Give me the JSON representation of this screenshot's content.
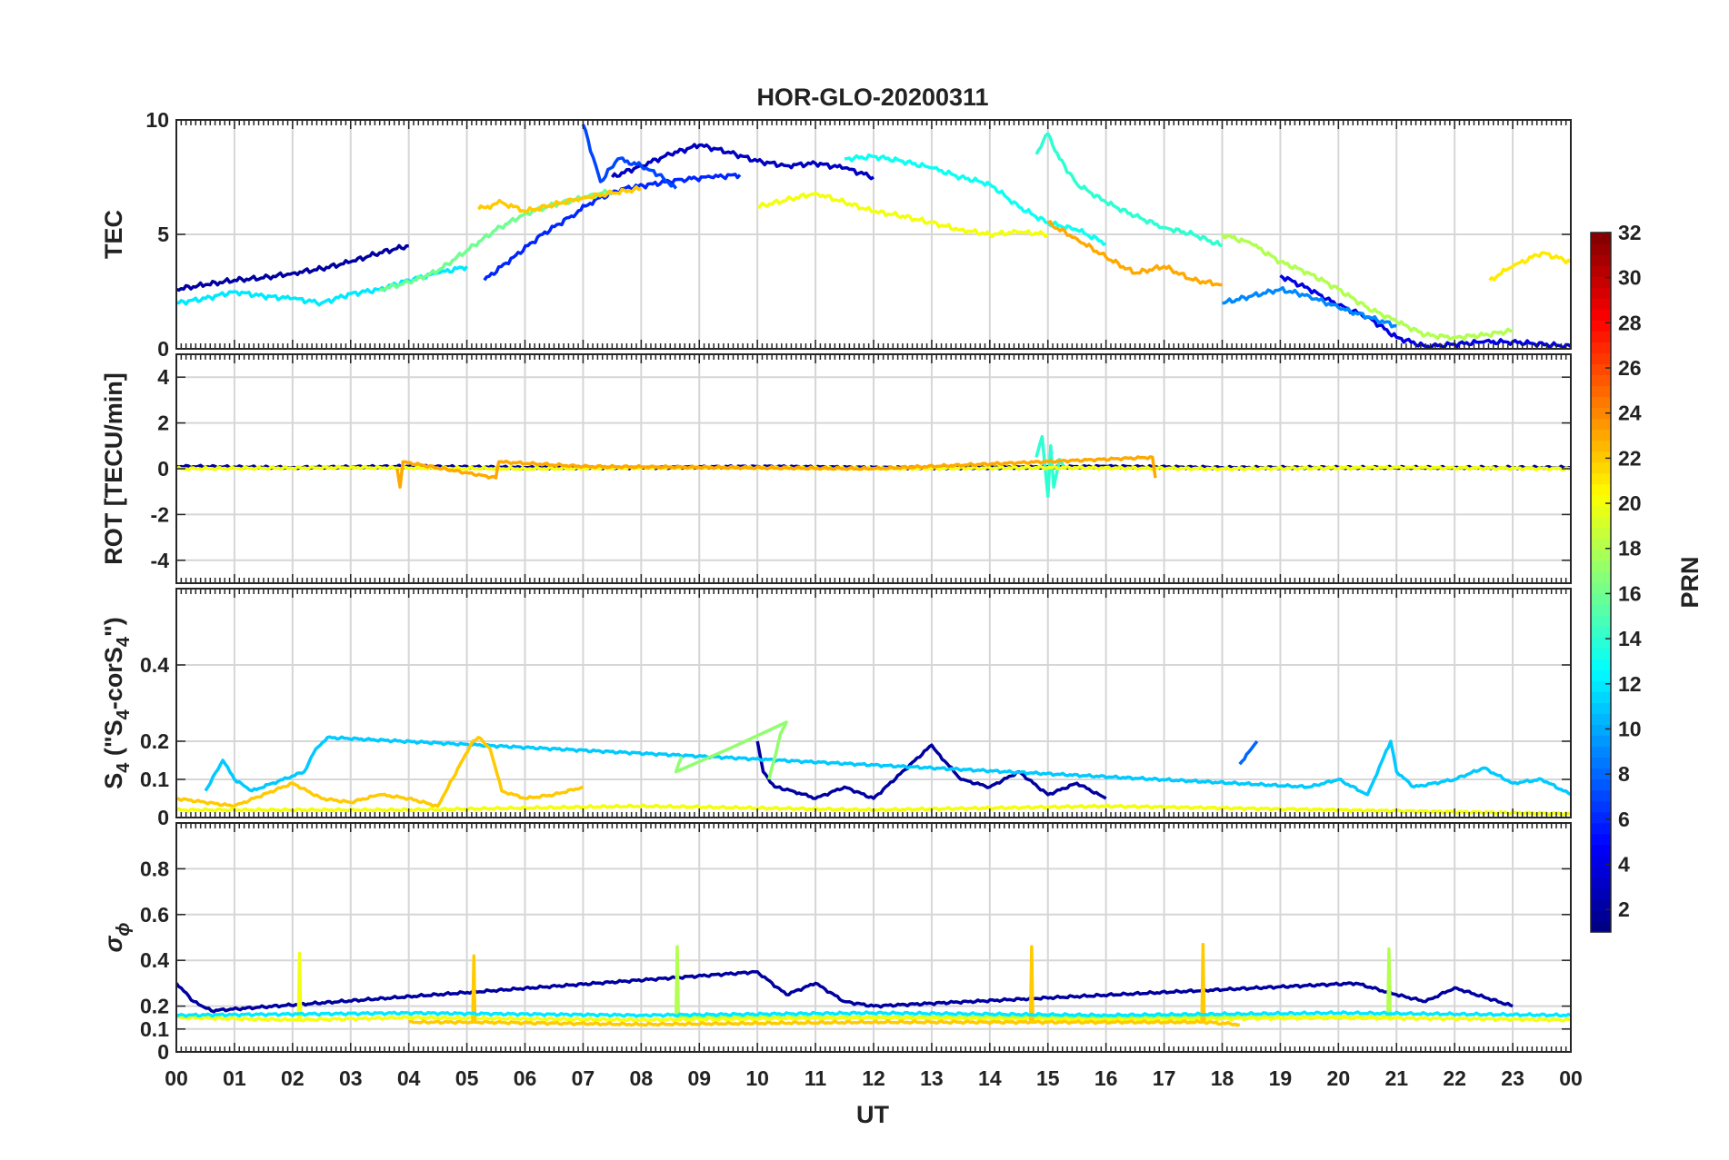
{
  "title": "HOR-GLO-20200311",
  "chart_data": [
    {
      "type": "line",
      "panel": "tec",
      "ylabel": "TEC",
      "ylim": [
        0,
        10
      ],
      "yticks": [
        0,
        5,
        10
      ],
      "ytick_labels": [
        "0",
        "5",
        "10"
      ],
      "xlim": [
        0,
        24
      ],
      "series": [
        {
          "name": "PRN 2",
          "prn": 2,
          "x": [
            0,
            0.5,
            1,
            1.5,
            2,
            2.5,
            3,
            3.5,
            4
          ],
          "y": [
            2.6,
            2.8,
            3.0,
            3.1,
            3.3,
            3.5,
            3.8,
            4.2,
            4.5
          ]
        },
        {
          "name": "PRN 3",
          "prn": 3,
          "x": [
            7.5,
            8,
            8.5,
            9,
            9.5,
            10,
            10.5,
            11,
            11.5,
            12
          ],
          "y": [
            7.5,
            8.0,
            8.5,
            8.9,
            8.6,
            8.2,
            8.0,
            8.1,
            7.9,
            7.5
          ]
        },
        {
          "name": "PRN 4",
          "prn": 4,
          "x": [
            19,
            19.5,
            20,
            20.5,
            21,
            21.5,
            22,
            22.5,
            23,
            24
          ],
          "y": [
            3.2,
            2.6,
            1.9,
            1.4,
            0.5,
            0.1,
            0.2,
            0.3,
            0.3,
            0.1
          ]
        },
        {
          "name": "PRN 6",
          "prn": 6,
          "x": [
            5.3,
            5.8,
            6.3,
            6.8,
            7.2,
            7.7,
            8.2,
            8.7,
            9.2,
            9.7
          ],
          "y": [
            3.0,
            4.0,
            5.0,
            5.8,
            6.5,
            7.0,
            7.2,
            7.4,
            7.5,
            7.6
          ]
        },
        {
          "name": "PRN 7",
          "prn": 7,
          "x": [
            7,
            7.3,
            7.6,
            8,
            8.3,
            8.6
          ],
          "y": [
            9.8,
            7.3,
            8.3,
            8.0,
            7.6,
            7.0
          ]
        },
        {
          "name": "PRN 9",
          "prn": 9,
          "x": [
            18,
            18.5,
            19,
            19.5,
            20,
            20.5,
            21
          ],
          "y": [
            2.0,
            2.3,
            2.6,
            2.3,
            1.8,
            1.4,
            1.0
          ]
        },
        {
          "name": "PRN 12",
          "prn": 12,
          "x": [
            0,
            0.5,
            1,
            1.5,
            2,
            2.5,
            3,
            3.5,
            4,
            4.5,
            5
          ],
          "y": [
            2.0,
            2.2,
            2.5,
            2.3,
            2.2,
            2.0,
            2.4,
            2.6,
            3.0,
            3.3,
            3.6
          ]
        },
        {
          "name": "PRN 13",
          "prn": 13,
          "x": [
            11.5,
            12,
            12.5,
            13,
            13.5,
            14,
            14.5,
            15,
            15.5,
            16
          ],
          "y": [
            8.3,
            8.4,
            8.2,
            7.9,
            7.5,
            7.2,
            6.2,
            5.5,
            5.2,
            4.6
          ]
        },
        {
          "name": "PRN 14",
          "prn": 14,
          "x": [
            14.8,
            15,
            15.2,
            15.5,
            16,
            16.5,
            17,
            17.5,
            18
          ],
          "y": [
            8.5,
            9.4,
            8.3,
            7.2,
            6.4,
            5.8,
            5.3,
            5.0,
            4.5
          ]
        },
        {
          "name": "PRN 16",
          "prn": 16,
          "x": [
            3.5,
            4,
            4.5,
            5,
            5.5,
            6,
            6.5,
            7,
            7.5
          ],
          "y": [
            2.6,
            2.9,
            3.4,
            4.3,
            5.2,
            5.9,
            6.3,
            6.6,
            6.9
          ]
        },
        {
          "name": "PRN 18",
          "prn": 18,
          "x": [
            18,
            18.5,
            19,
            19.5,
            20,
            20.5,
            21,
            21.5,
            22,
            22.5,
            23
          ],
          "y": [
            5.0,
            4.6,
            3.8,
            3.3,
            2.6,
            1.8,
            1.2,
            0.6,
            0.5,
            0.6,
            0.8
          ]
        },
        {
          "name": "PRN 20",
          "prn": 20,
          "x": [
            10,
            10.5,
            11,
            11.5,
            12,
            12.5,
            13,
            13.5,
            14,
            14.5,
            15
          ],
          "y": [
            6.2,
            6.5,
            6.8,
            6.4,
            6.0,
            5.8,
            5.5,
            5.2,
            5.0,
            5.1,
            5.0
          ]
        },
        {
          "name": "PRN 21",
          "prn": 21,
          "x": [
            22.6,
            23,
            23.5,
            24
          ],
          "y": [
            3.0,
            3.6,
            4.2,
            3.8
          ]
        },
        {
          "name": "PRN 22",
          "prn": 22,
          "x": [
            5.2,
            5.6,
            6,
            6.5,
            7,
            7.5,
            8
          ],
          "y": [
            6.1,
            6.4,
            6.0,
            6.3,
            6.6,
            6.8,
            7.0
          ]
        },
        {
          "name": "PRN 23",
          "prn": 23,
          "x": [
            15,
            15.5,
            16,
            16.5,
            17,
            17.5,
            18
          ],
          "y": [
            5.5,
            4.8,
            4.0,
            3.3,
            3.6,
            3.0,
            2.8
          ]
        }
      ]
    },
    {
      "type": "line",
      "panel": "rot",
      "ylabel": "ROT [TECU/min]",
      "ylim": [
        -5,
        5
      ],
      "yticks": [
        -4,
        -2,
        0,
        2,
        4
      ],
      "ytick_labels": [
        "-4",
        "-2",
        "0",
        "2",
        "4"
      ],
      "xlim": [
        0,
        24
      ],
      "series": [
        {
          "name": "PRN 2",
          "prn": 2,
          "x": [
            0,
            2,
            4,
            6,
            8,
            10,
            12,
            14,
            16,
            18,
            20,
            22,
            24
          ],
          "y": [
            0.1,
            0.05,
            0.1,
            0.05,
            0.05,
            0.1,
            0.05,
            0.05,
            0.1,
            0.05,
            0.05,
            0.05,
            0.05
          ]
        },
        {
          "name": "PRN 14",
          "prn": 14,
          "x": [
            14.8,
            14.9,
            15.0,
            15.05,
            15.1,
            15.2,
            15.3
          ],
          "y": [
            0.5,
            1.4,
            -1.2,
            1.0,
            -0.8,
            0.4,
            0.0
          ]
        },
        {
          "name": "PRN 20",
          "prn": 20,
          "x": [
            0,
            3,
            6,
            9,
            12,
            15,
            18,
            21,
            24
          ],
          "y": [
            0.0,
            0.05,
            0.0,
            0.05,
            0.0,
            0.05,
            0.0,
            0.05,
            0.0
          ]
        },
        {
          "name": "PRN 23",
          "prn": 23,
          "x": [
            3.8,
            3.85,
            3.9,
            5.5,
            5.55,
            7,
            12,
            16.8,
            16.85
          ],
          "y": [
            0.0,
            -0.8,
            0.3,
            -0.4,
            0.3,
            0.1,
            0.0,
            0.5,
            -0.4
          ]
        }
      ]
    },
    {
      "type": "line",
      "panel": "s4",
      "ylabel": "S4 (\"S4-corS4\")",
      "ylabel_parts": {
        "pre": "S",
        "sub1": "4",
        "mid": " (\"S",
        "sub2": "4",
        "mid2": "-corS",
        "sub3": "4",
        "post": "\")"
      },
      "ylim": [
        0,
        0.6
      ],
      "yticks": [
        0,
        0.1,
        0.2,
        0.4
      ],
      "ytick_labels": [
        "0",
        "0.1",
        "0.2",
        "0.4"
      ],
      "xlim": [
        0,
        24
      ],
      "series": [
        {
          "name": "PRN 2",
          "prn": 2,
          "x": [
            10,
            10.1,
            10.3,
            10.6,
            11,
            11.5,
            12,
            13,
            13.1,
            13.5,
            14,
            14.5,
            15,
            15.5,
            16
          ],
          "y": [
            0.2,
            0.12,
            0.08,
            0.07,
            0.05,
            0.08,
            0.05,
            0.19,
            0.17,
            0.1,
            0.08,
            0.12,
            0.06,
            0.09,
            0.05
          ]
        },
        {
          "name": "PRN 8",
          "prn": 8,
          "x": [
            18.3,
            18.5,
            18.6
          ],
          "y": [
            0.14,
            0.18,
            0.2
          ]
        },
        {
          "name": "PRN 11",
          "prn": 11,
          "x": [
            0.5,
            0.8,
            1,
            1.3,
            2.2,
            2.4,
            2.6,
            19.5,
            20,
            20.5,
            20.9,
            21,
            21.3,
            22,
            22.5,
            23,
            23.5,
            24
          ],
          "y": [
            0.07,
            0.15,
            0.1,
            0.07,
            0.12,
            0.18,
            0.21,
            0.08,
            0.1,
            0.06,
            0.2,
            0.12,
            0.08,
            0.1,
            0.13,
            0.09,
            0.1,
            0.06
          ]
        },
        {
          "name": "PRN 17",
          "prn": 17,
          "x": [
            10.2,
            10.4,
            10.5,
            8.6,
            8.7
          ],
          "y": [
            0.1,
            0.22,
            0.25,
            0.12,
            0.16
          ]
        },
        {
          "name": "PRN 22",
          "prn": 22,
          "x": [
            0,
            1,
            2,
            2.5,
            3,
            3.5,
            4,
            4.5,
            5.1,
            5.2,
            5.4,
            5.6,
            6,
            6.5,
            7
          ],
          "y": [
            0.05,
            0.03,
            0.09,
            0.05,
            0.04,
            0.06,
            0.05,
            0.03,
            0.2,
            0.21,
            0.18,
            0.07,
            0.05,
            0.06,
            0.08
          ]
        },
        {
          "name": "PRN 20",
          "prn": 20,
          "x": [
            0,
            4,
            8,
            12,
            16,
            20,
            24
          ],
          "y": [
            0.02,
            0.02,
            0.03,
            0.02,
            0.03,
            0.02,
            0.01
          ]
        }
      ]
    },
    {
      "type": "line",
      "panel": "sigma",
      "ylabel": "σ ϕ",
      "ylabel_parts": {
        "main": "σ",
        "sub": "ϕ"
      },
      "ylim": [
        0,
        1
      ],
      "yticks": [
        0,
        0.1,
        0.2,
        0.4,
        0.6,
        0.8
      ],
      "ytick_labels": [
        "0",
        "0.1",
        "0.2",
        "0.4",
        "0.6",
        "0.8"
      ],
      "xlim": [
        0,
        24
      ],
      "series": [
        {
          "name": "PRN 2",
          "prn": 2,
          "x": [
            0,
            0.3,
            0.6,
            10,
            10.5,
            11,
            11.5,
            12,
            20.3,
            21,
            21.5,
            22,
            22.5,
            23
          ],
          "y": [
            0.3,
            0.22,
            0.18,
            0.35,
            0.25,
            0.3,
            0.22,
            0.2,
            0.3,
            0.25,
            0.22,
            0.28,
            0.24,
            0.2
          ]
        },
        {
          "name": "PRN 18",
          "prn": 18,
          "x": [
            8.6,
            8.62,
            8.64,
            20.85,
            20.87,
            20.89
          ],
          "y": [
            0.15,
            0.46,
            0.15,
            0.15,
            0.45,
            0.15
          ]
        },
        {
          "name": "PRN 20",
          "prn": 20,
          "x": [
            0,
            2,
            2.1,
            2.12,
            2.14,
            4,
            8,
            12,
            16,
            20,
            24
          ],
          "y": [
            0.15,
            0.14,
            0.14,
            0.43,
            0.14,
            0.15,
            0.14,
            0.15,
            0.14,
            0.15,
            0.14
          ]
        },
        {
          "name": "PRN 22",
          "prn": 22,
          "x": [
            4,
            5.1,
            5.12,
            5.14,
            8,
            12,
            14.7,
            14.72,
            14.74,
            17.65,
            17.67,
            17.69,
            18.3
          ],
          "y": [
            0.13,
            0.13,
            0.42,
            0.13,
            0.12,
            0.13,
            0.13,
            0.46,
            0.13,
            0.13,
            0.47,
            0.13,
            0.12
          ]
        },
        {
          "name": "PRN 12",
          "prn": 12,
          "x": [
            0,
            4,
            8,
            12,
            16,
            20,
            24
          ],
          "y": [
            0.16,
            0.17,
            0.16,
            0.17,
            0.16,
            0.17,
            0.16
          ]
        }
      ]
    }
  ],
  "xaxis": {
    "label": "UT",
    "tick_labels": [
      "00",
      "01",
      "02",
      "03",
      "04",
      "05",
      "06",
      "07",
      "08",
      "09",
      "10",
      "11",
      "12",
      "13",
      "14",
      "15",
      "16",
      "17",
      "18",
      "19",
      "20",
      "21",
      "22",
      "23",
      "00"
    ]
  },
  "colorbar": {
    "label": "PRN",
    "range": [
      1,
      32
    ],
    "tick_values": [
      2,
      4,
      6,
      8,
      10,
      12,
      14,
      16,
      18,
      20,
      22,
      24,
      26,
      28,
      30,
      32
    ],
    "tick_labels": [
      "2",
      "4",
      "6",
      "8",
      "10",
      "12",
      "14",
      "16",
      "18",
      "20",
      "22",
      "24",
      "26",
      "28",
      "30",
      "32"
    ],
    "colormap": "jet"
  }
}
